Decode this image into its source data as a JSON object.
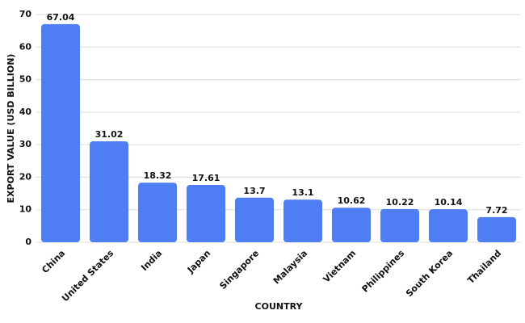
{
  "chart_data": {
    "type": "bar",
    "x_label": "COUNTRY",
    "y_label": "EXPORT VALUE (USD BILLION)",
    "categories": [
      "China",
      "United States",
      "India",
      "Japan",
      "Singapore",
      "Malaysia",
      "Vietnam",
      "Philippines",
      "South Korea",
      "Thailand"
    ],
    "values": [
      67.04,
      31.02,
      18.32,
      17.61,
      13.7,
      13.1,
      10.62,
      10.22,
      10.14,
      7.72
    ],
    "color": "#4f7df3",
    "ylim": [
      0,
      70
    ],
    "yticks": [
      0,
      10,
      20,
      30,
      40,
      50,
      60,
      70
    ],
    "grid": true
  }
}
